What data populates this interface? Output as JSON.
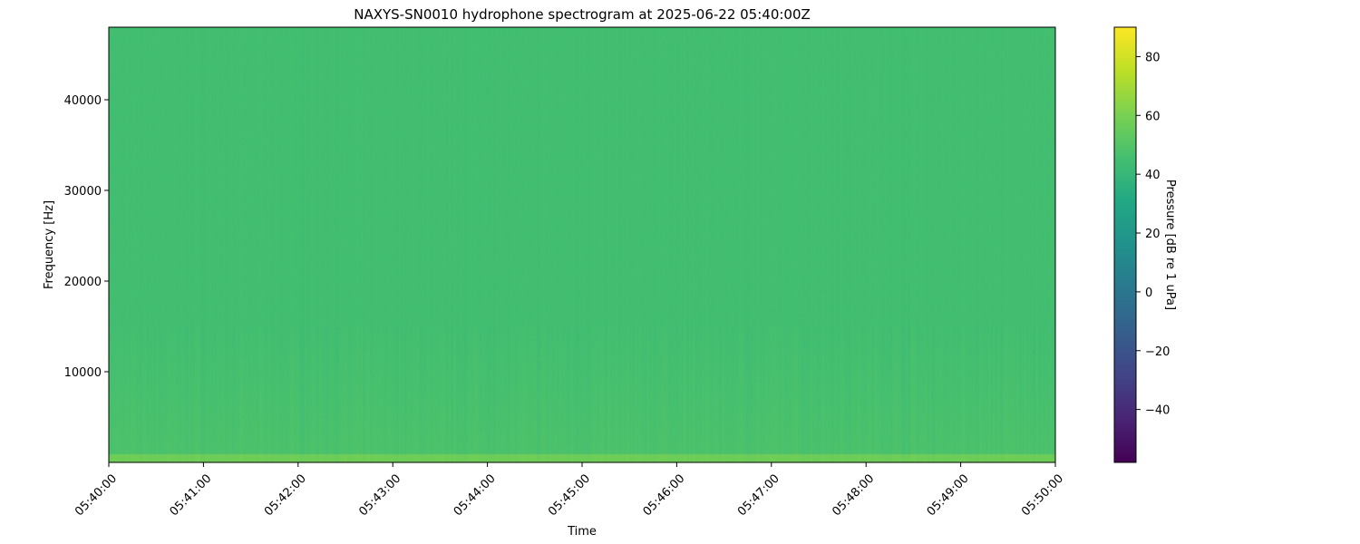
{
  "chart_data": {
    "type": "heatmap",
    "title": "NAXYS-SN0010 hydrophone spectrogram at 2025-06-22 05:40:00Z",
    "xlabel": "Time",
    "ylabel": "Frequency [Hz]",
    "x_ticks": [
      "05:40:00",
      "05:41:00",
      "05:42:00",
      "05:43:00",
      "05:44:00",
      "05:45:00",
      "05:46:00",
      "05:47:00",
      "05:48:00",
      "05:49:00",
      "05:50:00"
    ],
    "xlim": [
      "05:40:00",
      "05:50:00"
    ],
    "y_ticks": [
      10000,
      20000,
      30000,
      40000
    ],
    "ylim": [
      0,
      48000
    ],
    "colormap": "viridis",
    "colorbar": {
      "label": "Pressure [dB re 1 uPa]",
      "ticks": [
        -40,
        -20,
        0,
        20,
        40,
        60,
        80
      ],
      "range": [
        -58,
        90
      ]
    },
    "levels": {
      "background_db": 45,
      "below_15000_hz_db": 48,
      "below_1000_hz_db": 57
    },
    "grid": false
  }
}
